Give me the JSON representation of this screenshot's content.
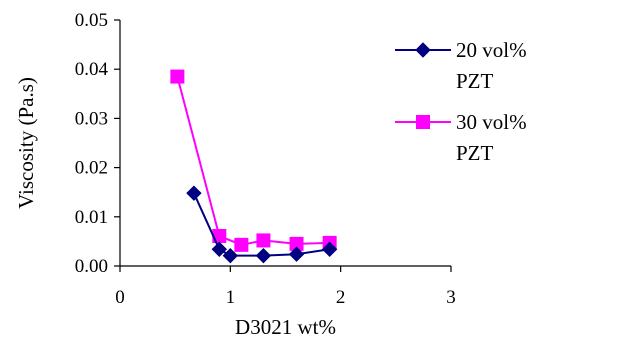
{
  "chart_data": {
    "type": "line",
    "xlabel": "D3021 wt%",
    "ylabel": "Viscosity (Pa.s)",
    "xlim": [
      0,
      3
    ],
    "ylim": [
      0,
      0.05
    ],
    "x_ticks": [
      0,
      1,
      2,
      3
    ],
    "x_tick_labels": [
      "0",
      "1",
      "2",
      "3"
    ],
    "y_ticks": [
      0,
      0.01,
      0.02,
      0.03,
      0.04,
      0.05
    ],
    "y_tick_labels": [
      "0.00",
      "0.01",
      "0.02",
      "0.03",
      "0.04",
      "0.05"
    ],
    "grid": false,
    "legend_position": "top-right",
    "series": [
      {
        "name_lines": [
          "20 vol%",
          "PZT"
        ],
        "color": "#000080",
        "marker": "diamond",
        "x": [
          0.67,
          0.9,
          1.0,
          1.3,
          1.6,
          1.9
        ],
        "y": [
          0.0148,
          0.0034,
          0.0021,
          0.0021,
          0.0024,
          0.0034
        ]
      },
      {
        "name_lines": [
          "30 vol%",
          "PZT"
        ],
        "color": "#FF00FF",
        "marker": "square",
        "x": [
          0.52,
          0.9,
          1.1,
          1.3,
          1.6,
          1.9
        ],
        "y": [
          0.0385,
          0.0061,
          0.0043,
          0.0052,
          0.0045,
          0.0047
        ]
      }
    ]
  }
}
